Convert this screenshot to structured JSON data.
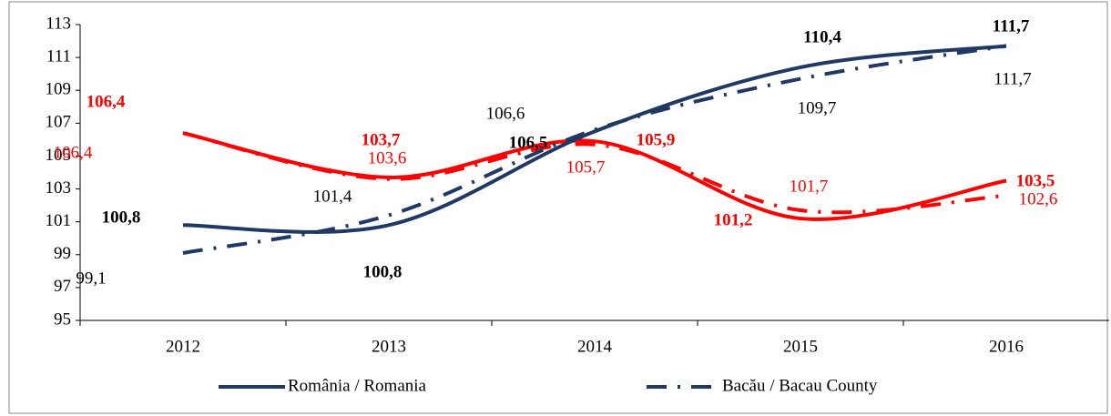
{
  "chart_data": {
    "type": "line",
    "categories": [
      "2012",
      "2013",
      "2014",
      "2015",
      "2016"
    ],
    "series": [
      {
        "name": "România / Romania",
        "color": "#1f3864",
        "dash": "solid",
        "values": [
          100.8,
          100.8,
          106.5,
          110.4,
          111.7
        ],
        "value_labels": [
          "100,8",
          "100,8",
          "106,5",
          "110,4",
          "111,7"
        ]
      },
      {
        "name": "Bacău / Bacau County",
        "color": "#1f3864",
        "dash": "dashdot",
        "values": [
          99.1,
          101.4,
          106.6,
          109.7,
          111.7
        ],
        "value_labels": [
          "99,1",
          "101,4",
          "106,6",
          "109,7",
          "111,7"
        ]
      },
      {
        "color": "#ff0000",
        "dash": "solid",
        "values": [
          106.4,
          103.7,
          105.9,
          101.2,
          103.5
        ],
        "value_labels": [
          "106,4",
          "103,7",
          "105,9",
          "101,2",
          "103,5"
        ]
      },
      {
        "color": "#ff0000",
        "dash": "dashdot",
        "values": [
          106.4,
          103.6,
          105.7,
          101.7,
          102.6
        ],
        "value_labels": [
          "106,4",
          "103,6",
          "105,7",
          "101,7",
          "102,6"
        ]
      }
    ],
    "ylim": [
      95,
      113
    ],
    "yticks": [
      95,
      97,
      99,
      101,
      103,
      105,
      107,
      109,
      111,
      113
    ],
    "legend": "bottom"
  }
}
